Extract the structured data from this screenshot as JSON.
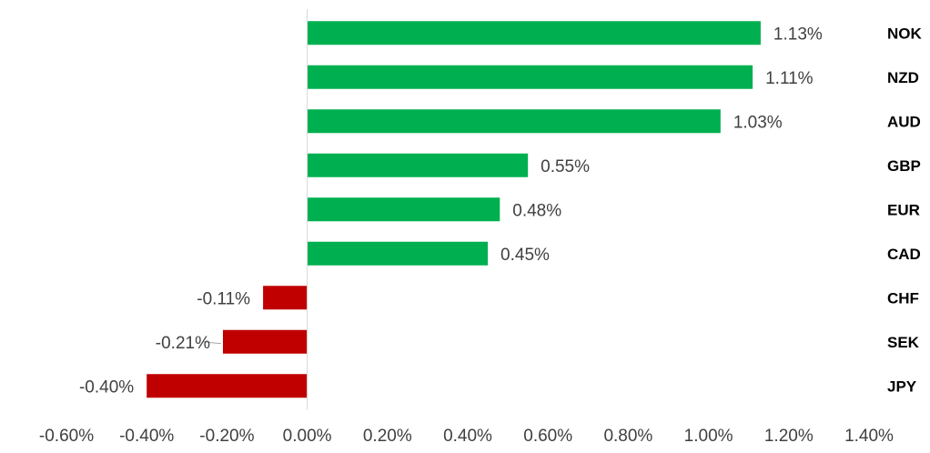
{
  "chart_data": {
    "type": "bar",
    "orientation": "horizontal",
    "categories": [
      "NOK",
      "NZD",
      "AUD",
      "GBP",
      "EUR",
      "CAD",
      "CHF",
      "SEK",
      "JPY"
    ],
    "values": [
      1.13,
      1.11,
      1.03,
      0.55,
      0.48,
      0.45,
      -0.11,
      -0.21,
      -0.4
    ],
    "data_labels": [
      "1.13%",
      "1.11%",
      "1.03%",
      "0.55%",
      "0.48%",
      "0.45%",
      "-0.11%",
      "-0.21%",
      "-0.40%"
    ],
    "x_ticks": [
      -0.6,
      -0.4,
      -0.2,
      0.0,
      0.2,
      0.4,
      0.6,
      0.8,
      1.0,
      1.2,
      1.4
    ],
    "x_tick_labels": [
      "-0.60%",
      "-0.40%",
      "-0.20%",
      "0.00%",
      "0.20%",
      "0.40%",
      "0.60%",
      "0.80%",
      "1.00%",
      "1.20%",
      "1.40%"
    ],
    "xlim": [
      -0.6,
      1.4
    ],
    "unit": "%",
    "title": "",
    "xlabel": "",
    "ylabel": "",
    "grid": false,
    "legend": "none",
    "colors": {
      "positive": "#00b050",
      "negative": "#c00000",
      "axis": "#d9d9d9"
    }
  }
}
